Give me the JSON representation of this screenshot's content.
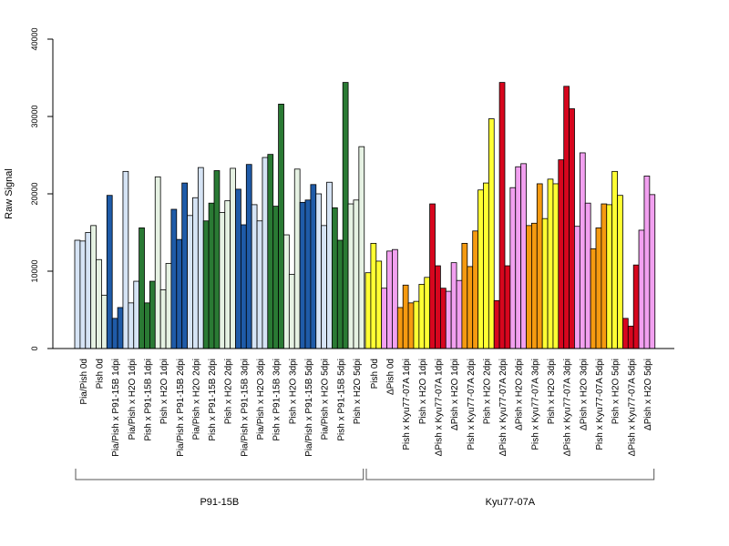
{
  "chart_data": {
    "type": "bar",
    "ylabel": "Raw Signal",
    "ylim": [
      0,
      40000
    ],
    "yticks": [
      0,
      10000,
      20000,
      30000,
      40000
    ],
    "colors": {
      "lightblue": "#d6e4f5",
      "darkblue": "#1f5ba8",
      "lightgreen": "#e6f2e3",
      "darkgreen": "#2a7a34",
      "yellow": "#ffff33",
      "pink": "#f2a0f0",
      "orange": "#f59a10",
      "red": "#d7061e"
    },
    "groups": [
      {
        "label": "P91-15B",
        "categories": [
          {
            "label": "Pia/Pish 0d",
            "color": "lightblue",
            "values": [
              14000,
              13900,
              15000
            ]
          },
          {
            "label": "Pish 0d",
            "color": "lightgreen",
            "values": [
              15900,
              11500,
              6900
            ]
          },
          {
            "label": "Pia/Pish x P91-15B 1dpi",
            "color": "darkblue",
            "values": [
              19800,
              3900,
              5300
            ]
          },
          {
            "label": "Pia/Pish x H2O 1dpi",
            "color": "lightblue",
            "values": [
              22900,
              5900,
              8700
            ]
          },
          {
            "label": "Pish x P91-15B 1dpi",
            "color": "darkgreen",
            "values": [
              15600,
              5900,
              8700
            ]
          },
          {
            "label": "Pish x H2O 1dpi",
            "color": "lightgreen",
            "values": [
              22200,
              7600,
              11000
            ]
          },
          {
            "label": "Pia/Pish x P91-15B 2dpi",
            "color": "darkblue",
            "values": [
              18000,
              14100,
              21400
            ]
          },
          {
            "label": "Pia/Pish x H2O 2dpi",
            "color": "lightblue",
            "values": [
              17200,
              19500,
              23400
            ]
          },
          {
            "label": "Pish x P91-15B 2dpi",
            "color": "darkgreen",
            "values": [
              16500,
              18800,
              23000
            ]
          },
          {
            "label": "Pish x H2O 2dpi",
            "color": "lightgreen",
            "values": [
              17600,
              19100,
              23300
            ]
          },
          {
            "label": "Pia/Pish x P91-15B 3dpi",
            "color": "darkblue",
            "values": [
              20600,
              16000,
              23800
            ]
          },
          {
            "label": "Pia/Pish x H2O 3dpi",
            "color": "lightblue",
            "values": [
              18600,
              16500,
              24700
            ]
          },
          {
            "label": "Pish x P91-15B 3dpi",
            "color": "darkgreen",
            "values": [
              25100,
              18400,
              31600
            ]
          },
          {
            "label": "Pish x H2O 3dpi",
            "color": "lightgreen",
            "values": [
              14700,
              9600,
              23200
            ]
          },
          {
            "label": "Pia/Pish x P91-15B 5dpi",
            "color": "darkblue",
            "values": [
              18900,
              19200,
              21200
            ]
          },
          {
            "label": "Pia/Pish x H2O 5dpi",
            "color": "lightblue",
            "values": [
              20000,
              15900,
              21500
            ]
          },
          {
            "label": "Pish x P91-15B 5dpi",
            "color": "darkgreen",
            "values": [
              18200,
              14000,
              34400
            ]
          },
          {
            "label": "Pish x H2O 5dpi",
            "color": "lightgreen",
            "values": [
              18700,
              19200,
              26100
            ]
          }
        ]
      },
      {
        "label": "Kyu77-07A",
        "categories": [
          {
            "label": "Pish 0d",
            "color": "yellow",
            "values": [
              9800,
              13600,
              11300
            ]
          },
          {
            "label": "ΔPish 0d",
            "color": "pink",
            "values": [
              7800,
              12600,
              12800
            ]
          },
          {
            "label": "Pish x Kyu77-07A 1dpi",
            "color": "orange",
            "values": [
              5300,
              8200,
              5900
            ]
          },
          {
            "label": "Pish x H2O 1dpi",
            "color": "yellow",
            "values": [
              6100,
              8300,
              9200
            ]
          },
          {
            "label": "ΔPish x Kyu77-07A 1dpi",
            "color": "red",
            "values": [
              18700,
              10700,
              7800
            ]
          },
          {
            "label": "ΔPish x H2O 1dpi",
            "color": "pink",
            "values": [
              7400,
              11100,
              8800
            ]
          },
          {
            "label": "Pish x Kyu77-07A 2dpi",
            "color": "orange",
            "values": [
              13600,
              10600,
              15200
            ]
          },
          {
            "label": "Pish x H2O 2dpi",
            "color": "yellow",
            "values": [
              20500,
              21400,
              29700
            ]
          },
          {
            "label": "ΔPish x Kyu77-07A 2dpi",
            "color": "red",
            "values": [
              6200,
              34400,
              10700
            ]
          },
          {
            "label": "ΔPish x H2O 2dpi",
            "color": "pink",
            "values": [
              20800,
              23500,
              23900
            ]
          },
          {
            "label": "Pish x Kyu77-07A 3dpi",
            "color": "orange",
            "values": [
              15900,
              16200,
              21300
            ]
          },
          {
            "label": "Pish x H2O 3dpi",
            "color": "yellow",
            "values": [
              16800,
              21900,
              21300
            ]
          },
          {
            "label": "ΔPish x Kyu77-07A 3dpi",
            "color": "red",
            "values": [
              24400,
              33900,
              31000
            ]
          },
          {
            "label": "ΔPish x H2O 3dpi",
            "color": "pink",
            "values": [
              15800,
              25300,
              18800
            ]
          },
          {
            "label": "Pish x Kyu77-07A 5dpi",
            "color": "orange",
            "values": [
              12900,
              15600,
              18700
            ]
          },
          {
            "label": "Pish x H2O 5dpi",
            "color": "yellow",
            "values": [
              18600,
              22900,
              19800
            ]
          },
          {
            "label": "ΔPish x Kyu77-07A 5dpi",
            "color": "red",
            "values": [
              3900,
              2900,
              10800
            ]
          },
          {
            "label": "ΔPish x H2O 5dpi",
            "color": "pink",
            "values": [
              15300,
              22300,
              19900
            ]
          }
        ]
      }
    ]
  }
}
